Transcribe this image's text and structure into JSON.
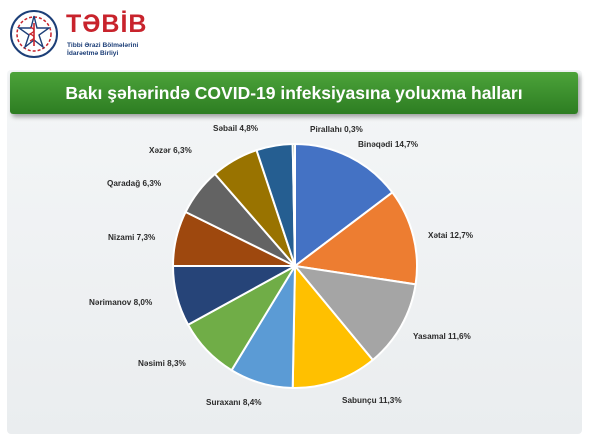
{
  "logo": {
    "name": "TƏBİB",
    "subtitle_line1": "Tibbi Ərazi Bölmələrini",
    "subtitle_line2": "İdarəetmə Birliyi",
    "brand_red": "#c8232c",
    "brand_blue": "#1d3f78"
  },
  "banner": {
    "title": "Bakı şəhərində COVID-19 infeksiyasına yoluxma halları",
    "color": "#3a8f2c"
  },
  "chart_data": {
    "type": "pie",
    "title": "Bakı şəhərində COVID-19 infeksiyasına yoluxma halları",
    "unit": "%",
    "start": "12 o'clock, clockwise",
    "slices": [
      {
        "label": "Binəqədi 14,7%",
        "value": 14.7,
        "color": "#4472c4"
      },
      {
        "label": "Xətai 12,7%",
        "value": 12.7,
        "color": "#ed7d31"
      },
      {
        "label": "Yasamal 11,6%",
        "value": 11.6,
        "color": "#a5a5a5"
      },
      {
        "label": "Sabunçu 11,3%",
        "value": 11.3,
        "color": "#ffc000"
      },
      {
        "label": "Suraxanı 8,4%",
        "value": 8.4,
        "color": "#5b9bd5"
      },
      {
        "label": "Nəsimi 8,3%",
        "value": 8.3,
        "color": "#70ad47"
      },
      {
        "label": "Nərimanov 8,0%",
        "value": 8.0,
        "color": "#264478"
      },
      {
        "label": "Nizami 7,3%",
        "value": 7.3,
        "color": "#9e480e"
      },
      {
        "label": "Qaradağ 6,3%",
        "value": 6.3,
        "color": "#636363"
      },
      {
        "label": "Xəzər 6,3%",
        "value": 6.3,
        "color": "#997300"
      },
      {
        "label": "Səbail 4,8%",
        "value": 4.8,
        "color": "#255e91"
      },
      {
        "label": "Pirallahı 0,3%",
        "value": 0.3,
        "color": "#43682b"
      }
    ]
  }
}
